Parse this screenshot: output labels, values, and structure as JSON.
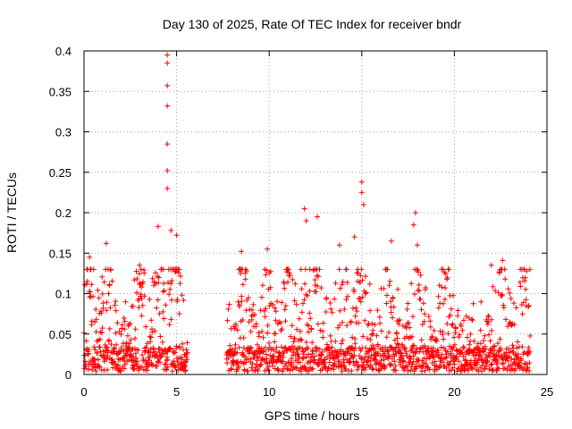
{
  "chart_data": {
    "type": "scatter",
    "title": "Day 130 of 2025, Rate Of TEC Index for receiver bndr",
    "xlabel": "GPS time / hours",
    "ylabel": "ROTI / TECUs",
    "xlim": [
      0,
      25
    ],
    "ylim": [
      0,
      0.4
    ],
    "x_ticks": [
      0,
      5,
      10,
      15,
      20,
      25
    ],
    "y_ticks": [
      0,
      0.05,
      0.1,
      0.15,
      0.2,
      0.25,
      0.3,
      0.35,
      0.4
    ],
    "x_tick_labels": [
      "0",
      "5",
      "10",
      "15",
      "20",
      "25"
    ],
    "y_tick_labels": [
      "0",
      "0.05",
      "0.1",
      "0.15",
      "0.2",
      "0.25",
      "0.3",
      "0.35",
      "0.4"
    ],
    "grid": true,
    "marker": "+",
    "color": "#ff0000",
    "series": [
      {
        "name": "ROTI",
        "segments": [
          {
            "x_start": 0.0,
            "x_end": 5.6
          },
          {
            "x_start": 7.7,
            "x_end": 24.1
          }
        ],
        "notable_points": [
          {
            "x": 0.3,
            "y": 0.145
          },
          {
            "x": 1.2,
            "y": 0.162
          },
          {
            "x": 3.0,
            "y": 0.135
          },
          {
            "x": 4.0,
            "y": 0.183
          },
          {
            "x": 4.5,
            "y": 0.395
          },
          {
            "x": 4.5,
            "y": 0.385
          },
          {
            "x": 4.5,
            "y": 0.357
          },
          {
            "x": 4.5,
            "y": 0.332
          },
          {
            "x": 4.5,
            "y": 0.285
          },
          {
            "x": 4.5,
            "y": 0.252
          },
          {
            "x": 4.5,
            "y": 0.23
          },
          {
            "x": 4.7,
            "y": 0.178
          },
          {
            "x": 5.0,
            "y": 0.172
          },
          {
            "x": 8.5,
            "y": 0.152
          },
          {
            "x": 9.9,
            "y": 0.155
          },
          {
            "x": 11.0,
            "y": 0.13
          },
          {
            "x": 11.9,
            "y": 0.205
          },
          {
            "x": 12.0,
            "y": 0.19
          },
          {
            "x": 12.6,
            "y": 0.195
          },
          {
            "x": 13.8,
            "y": 0.16
          },
          {
            "x": 14.6,
            "y": 0.17
          },
          {
            "x": 15.0,
            "y": 0.238
          },
          {
            "x": 15.0,
            "y": 0.225
          },
          {
            "x": 15.1,
            "y": 0.21
          },
          {
            "x": 16.6,
            "y": 0.165
          },
          {
            "x": 17.9,
            "y": 0.2
          },
          {
            "x": 17.8,
            "y": 0.185
          },
          {
            "x": 18.0,
            "y": 0.16
          },
          {
            "x": 22.0,
            "y": 0.135
          },
          {
            "x": 22.6,
            "y": 0.141
          },
          {
            "x": 23.9,
            "y": 0.128
          }
        ]
      }
    ]
  }
}
